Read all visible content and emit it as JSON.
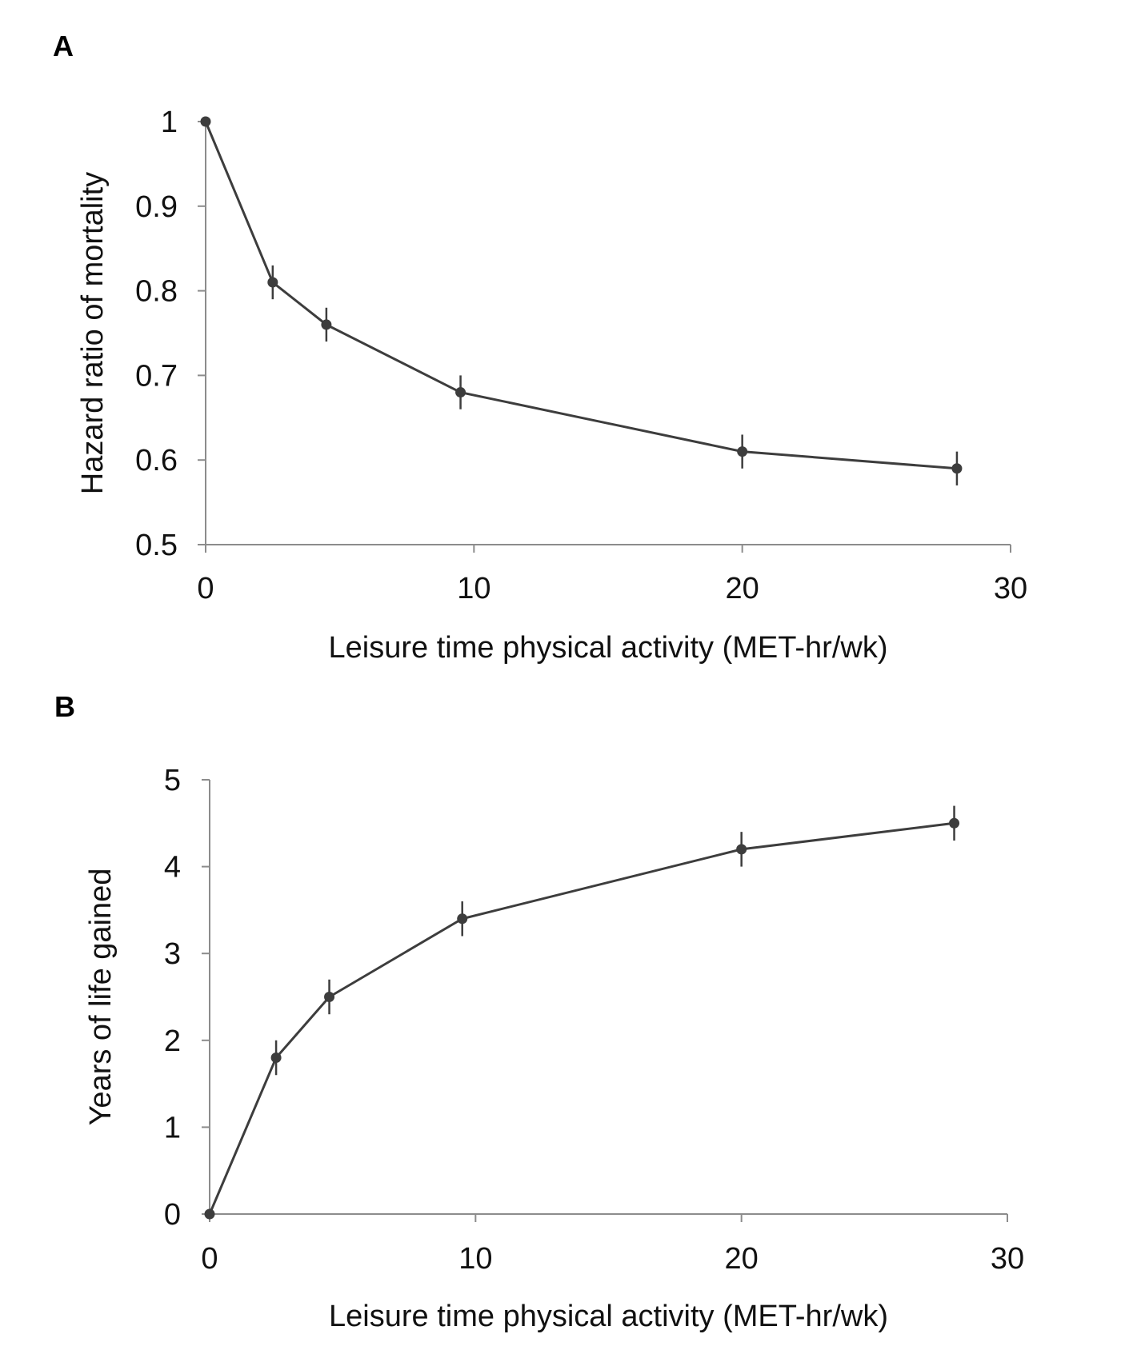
{
  "chart_data": [
    {
      "panel": "A",
      "type": "line",
      "xlabel": "Leisure time physical activity (MET-hr/wk)",
      "ylabel": "Hazard ratio of mortality",
      "xlim": [
        0,
        30
      ],
      "ylim": [
        0.5,
        1
      ],
      "xticks": [
        "0",
        "10",
        "20",
        "30"
      ],
      "yticks": [
        "0.5",
        "0.6",
        "0.7",
        "0.8",
        "0.9",
        "1"
      ],
      "x": [
        0,
        2.5,
        4.5,
        9.5,
        20,
        28
      ],
      "y": [
        1.0,
        0.81,
        0.76,
        0.68,
        0.61,
        0.59
      ],
      "error": [
        0,
        0.02,
        0.02,
        0.02,
        0.02,
        0.02
      ]
    },
    {
      "panel": "B",
      "type": "line",
      "xlabel": "Leisure time physical activity (MET-hr/wk)",
      "ylabel": "Years of life gained",
      "xlim": [
        0,
        30
      ],
      "ylim": [
        0,
        5
      ],
      "xticks": [
        "0",
        "10",
        "20",
        "30"
      ],
      "yticks": [
        "0",
        "1",
        "2",
        "3",
        "4",
        "5"
      ],
      "x": [
        0,
        2.5,
        4.5,
        9.5,
        20,
        28
      ],
      "y": [
        0,
        1.8,
        2.5,
        3.4,
        4.2,
        4.5
      ],
      "error": [
        0,
        0.2,
        0.2,
        0.2,
        0.2,
        0.2
      ]
    }
  ]
}
